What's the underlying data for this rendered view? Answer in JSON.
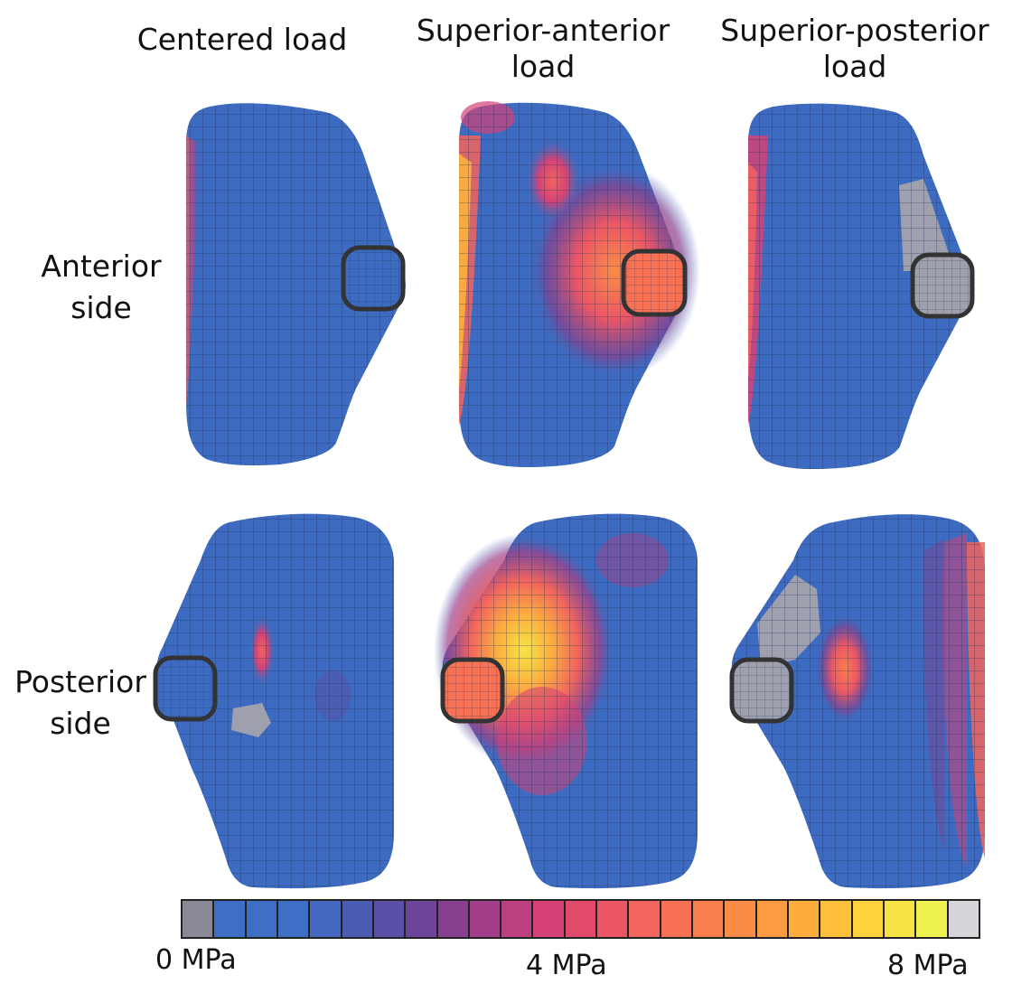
{
  "columns": {
    "centered": [
      "Centered load"
    ],
    "superior_anterior": [
      "Superior-anterior",
      "load"
    ],
    "superior_posterior": [
      "Superior-posterior",
      "load"
    ]
  },
  "rows": {
    "anterior": [
      "Anterior",
      "side"
    ],
    "posterior": [
      "Posterior",
      "side"
    ]
  },
  "scale": {
    "min_label": "0 MPa",
    "mid_label": "4 MPa",
    "max_label": "8 MPa",
    "min_value_mpa": 0,
    "max_value_mpa": 8,
    "colors": [
      "#8a8a96",
      "#3f6fc4",
      "#3f6fc4",
      "#3f6fc4",
      "#4468bf",
      "#4a5cb5",
      "#5a4fa6",
      "#6e449a",
      "#86408f",
      "#a23f88",
      "#bc3f80",
      "#d44277",
      "#e24a6c",
      "#ec5664",
      "#f2645c",
      "#f77154",
      "#fa7e4d",
      "#fb8c47",
      "#fc9b42",
      "#fdad3e",
      "#fdbf3c",
      "#fcd23d",
      "#f6e445",
      "#eef04f",
      "#d6d6da"
    ]
  },
  "panels": [
    {
      "row": "anterior",
      "column": "centered",
      "mesh_color": "#3c6bc1"
    },
    {
      "row": "anterior",
      "column": "superior_anterior",
      "mesh_color": "#3c6bc1"
    },
    {
      "row": "anterior",
      "column": "superior_posterior",
      "mesh_color": "#3c6bc1"
    },
    {
      "row": "posterior",
      "column": "centered",
      "mesh_color": "#3c6bc1"
    },
    {
      "row": "posterior",
      "column": "superior_anterior",
      "mesh_color": "#3c6bc1"
    },
    {
      "row": "posterior",
      "column": "superior_posterior",
      "mesh_color": "#3c6bc1"
    }
  ]
}
